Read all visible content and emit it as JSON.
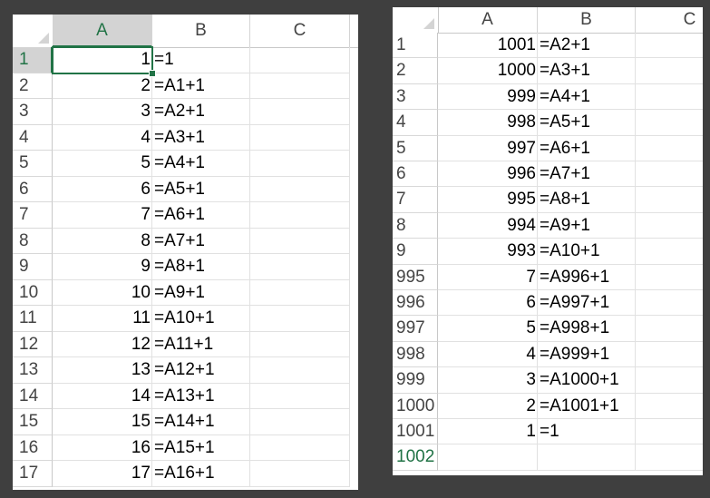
{
  "left_sheet": {
    "columns": [
      "A",
      "B",
      "C"
    ],
    "rows": [
      {
        "row": "1",
        "a": "1",
        "b": "=1"
      },
      {
        "row": "2",
        "a": "2",
        "b": "=A1+1"
      },
      {
        "row": "3",
        "a": "3",
        "b": "=A2+1"
      },
      {
        "row": "4",
        "a": "4",
        "b": "=A3+1"
      },
      {
        "row": "5",
        "a": "5",
        "b": "=A4+1"
      },
      {
        "row": "6",
        "a": "6",
        "b": "=A5+1"
      },
      {
        "row": "7",
        "a": "7",
        "b": "=A6+1"
      },
      {
        "row": "8",
        "a": "8",
        "b": "=A7+1"
      },
      {
        "row": "9",
        "a": "9",
        "b": "=A8+1"
      },
      {
        "row": "10",
        "a": "10",
        "b": "=A9+1"
      },
      {
        "row": "11",
        "a": "11",
        "b": "=A10+1"
      },
      {
        "row": "12",
        "a": "12",
        "b": "=A11+1"
      },
      {
        "row": "13",
        "a": "13",
        "b": "=A12+1"
      },
      {
        "row": "14",
        "a": "14",
        "b": "=A13+1"
      },
      {
        "row": "15",
        "a": "15",
        "b": "=A14+1"
      },
      {
        "row": "16",
        "a": "16",
        "b": "=A15+1"
      },
      {
        "row": "17",
        "a": "17",
        "b": "=A16+1"
      }
    ]
  },
  "right_sheet": {
    "columns": [
      "A",
      "B",
      "C"
    ],
    "rows": [
      {
        "row": "1",
        "a": "1001",
        "b": "=A2+1"
      },
      {
        "row": "2",
        "a": "1000",
        "b": "=A3+1"
      },
      {
        "row": "3",
        "a": "999",
        "b": "=A4+1"
      },
      {
        "row": "4",
        "a": "998",
        "b": "=A5+1"
      },
      {
        "row": "5",
        "a": "997",
        "b": "=A6+1"
      },
      {
        "row": "6",
        "a": "996",
        "b": "=A7+1"
      },
      {
        "row": "7",
        "a": "995",
        "b": "=A8+1"
      },
      {
        "row": "8",
        "a": "994",
        "b": "=A9+1"
      },
      {
        "row": "9",
        "a": "993",
        "b": "=A10+1"
      },
      {
        "row": "995",
        "a": "7",
        "b": "=A996+1"
      },
      {
        "row": "996",
        "a": "6",
        "b": "=A997+1"
      },
      {
        "row": "997",
        "a": "5",
        "b": "=A998+1"
      },
      {
        "row": "998",
        "a": "4",
        "b": "=A999+1"
      },
      {
        "row": "999",
        "a": "3",
        "b": "=A1000+1"
      },
      {
        "row": "1000",
        "a": "2",
        "b": "=A1001+1"
      },
      {
        "row": "1001",
        "a": "1",
        "b": "=1"
      },
      {
        "row": "1002",
        "a": "",
        "b": ""
      }
    ]
  },
  "colors": {
    "accent": "#217346",
    "background": "#3f3f3f"
  },
  "icons": {
    "select_all": "select-all-triangle-icon"
  }
}
